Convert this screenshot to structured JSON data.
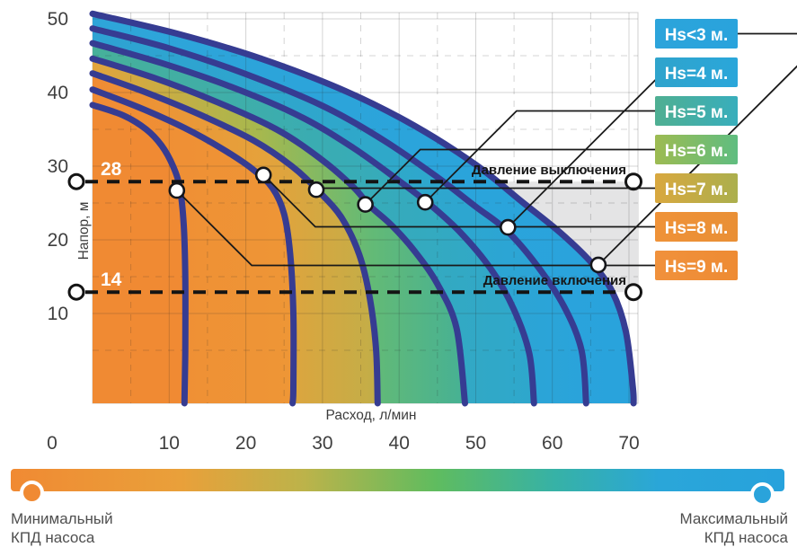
{
  "chart_data": {
    "type": "area",
    "title": "",
    "xlabel": "Расход, л/мин",
    "ylabel": "Напор, м",
    "x_ticks": [
      0,
      10,
      20,
      30,
      40,
      50,
      60,
      70
    ],
    "y_ticks": [
      10,
      20,
      30,
      40,
      50
    ],
    "xlim": [
      0,
      71
    ],
    "ylim": [
      0,
      51
    ],
    "grid": {
      "major_step": 10,
      "minor_step": 5,
      "major_on": true,
      "minor_dashed": true
    },
    "legend_position": "right",
    "curve_line_color": "#363C92",
    "operating_band_color": "#E4E4E5",
    "curves": [
      {
        "label": "Hs=9 м.",
        "chip": [
          "#F0913C",
          "#EE8B33"
        ],
        "band": [
          [
            0,
            "#F08A33"
          ],
          [
            1,
            "#F08A33"
          ]
        ],
        "points": [
          [
            0,
            38.3
          ],
          [
            4,
            36.9
          ],
          [
            7,
            35.0
          ],
          [
            9,
            32.8
          ],
          [
            10.5,
            30.0
          ],
          [
            11.4,
            27.0
          ],
          [
            11.9,
            22.0
          ],
          [
            12.1,
            15.0
          ],
          [
            12.1,
            5.0
          ],
          [
            12.0,
            -2.2
          ]
        ],
        "marker": [
          11.0,
          26.7
        ]
      },
      {
        "label": "Hs=8 м.",
        "chip": [
          "#EF9238",
          "#E98F35"
        ],
        "band": [
          [
            0,
            "#F08B34"
          ],
          [
            1,
            "#EE9636"
          ]
        ],
        "points": [
          [
            0,
            40.4
          ],
          [
            6,
            38.0
          ],
          [
            12,
            35.2
          ],
          [
            17,
            32.3
          ],
          [
            21,
            29.5
          ],
          [
            23.5,
            27.0
          ],
          [
            25,
            23.5
          ],
          [
            25.8,
            18.0
          ],
          [
            26.2,
            10.0
          ],
          [
            26.2,
            0.0
          ],
          [
            26.1,
            -2.2
          ]
        ],
        "marker": [
          22.3,
          28.8
        ]
      },
      {
        "label": "Hs=7 м.",
        "chip": [
          "#D9A83F",
          "#ABAF4D"
        ],
        "band": [
          [
            0,
            "#F08B34"
          ],
          [
            0.6,
            "#E5A23B"
          ],
          [
            1,
            "#C2AE48"
          ]
        ],
        "points": [
          [
            0,
            42.6
          ],
          [
            7,
            40.0
          ],
          [
            14,
            37.0
          ],
          [
            21,
            33.5
          ],
          [
            26,
            30.0
          ],
          [
            29.5,
            26.6
          ],
          [
            32.5,
            23.0
          ],
          [
            34.8,
            18.0
          ],
          [
            36.2,
            12.0
          ],
          [
            37,
            5.0
          ],
          [
            37.2,
            -2.2
          ]
        ],
        "marker": [
          29.2,
          26.8
        ]
      },
      {
        "label": "Hs=6 м.",
        "chip": [
          "#9DBB52",
          "#5FBD80"
        ],
        "band": [
          [
            0,
            "#E3A43C"
          ],
          [
            0.45,
            "#A6B84E"
          ],
          [
            0.75,
            "#63BA76"
          ],
          [
            1,
            "#46B194"
          ]
        ],
        "points": [
          [
            0,
            44.6
          ],
          [
            8,
            42.0
          ],
          [
            16,
            38.8
          ],
          [
            24,
            35.0
          ],
          [
            30,
            30.8
          ],
          [
            34,
            27.2
          ],
          [
            36.2,
            24.6
          ],
          [
            39,
            22.0
          ],
          [
            42,
            18.5
          ],
          [
            45,
            14.0
          ],
          [
            47.5,
            8.0
          ],
          [
            48.6,
            -2.2
          ]
        ],
        "marker": [
          35.6,
          24.8
        ]
      },
      {
        "label": "Hs=5 м.",
        "chip": [
          "#4FAF92",
          "#38AEBC"
        ],
        "band": [
          [
            0,
            "#47B09A"
          ],
          [
            0.55,
            "#39ACB4"
          ],
          [
            1,
            "#2EA7CD"
          ]
        ],
        "points": [
          [
            0,
            46.7
          ],
          [
            9,
            44.0
          ],
          [
            18,
            40.8
          ],
          [
            27,
            36.8
          ],
          [
            34,
            32.5
          ],
          [
            40,
            28.0
          ],
          [
            44,
            24.8
          ],
          [
            48,
            21.0
          ],
          [
            52,
            16.0
          ],
          [
            55,
            10.5
          ],
          [
            57,
            4.5
          ],
          [
            57.6,
            -2.2
          ]
        ],
        "marker": [
          43.4,
          25.1
        ]
      },
      {
        "label": "Hs=4 м.",
        "chip": [
          "#2FA4CC",
          "#2AA6DA"
        ],
        "band": [
          [
            0,
            "#2EA2D3"
          ],
          [
            0.6,
            "#2FA8C9"
          ],
          [
            1,
            "#2AA3DB"
          ]
        ],
        "points": [
          [
            0,
            48.7
          ],
          [
            10,
            46.0
          ],
          [
            20,
            42.5
          ],
          [
            30,
            38.2
          ],
          [
            38,
            33.5
          ],
          [
            45,
            28.5
          ],
          [
            50,
            24.5
          ],
          [
            54,
            21.3
          ],
          [
            58,
            16.5
          ],
          [
            61.5,
            11.0
          ],
          [
            63.8,
            5.0
          ],
          [
            64.4,
            -2.2
          ]
        ],
        "marker": [
          54.2,
          21.7
        ]
      },
      {
        "label": "Hs<3 м.",
        "chip": [
          "#2CA4DB",
          "#29A3DC"
        ],
        "band": [
          [
            0,
            "#2EA5D9"
          ],
          [
            1,
            "#29A3DC"
          ]
        ],
        "points": [
          [
            0,
            50.7
          ],
          [
            11,
            48.0
          ],
          [
            22,
            44.6
          ],
          [
            33,
            40.2
          ],
          [
            42,
            35.5
          ],
          [
            50,
            30.2
          ],
          [
            56,
            25.2
          ],
          [
            61,
            21.0
          ],
          [
            65,
            17.0
          ],
          [
            67.8,
            13.0
          ],
          [
            69.6,
            7.5
          ],
          [
            70.5,
            0.0
          ],
          [
            70.6,
            -2.2
          ]
        ],
        "marker": [
          66.0,
          16.6
        ]
      }
    ],
    "threshold_lines": [
      {
        "value": 28,
        "label": "28",
        "caption": "Давление выключения",
        "head_position": 27.9
      },
      {
        "value": 14,
        "label": "14",
        "caption": "Давление включения",
        "head_position": 12.9
      }
    ],
    "efficiency_bar": {
      "min_lines": [
        "Минимальный",
        "КПД насоса"
      ],
      "max_lines": [
        "Максимальный",
        "КПД насоса"
      ],
      "min_marker_color": "#F08A33",
      "max_marker_color": "#2AA3DB",
      "stops": [
        {
          "off": "0%",
          "color": "#F08A33"
        },
        {
          "off": "22%",
          "color": "#E9A03A"
        },
        {
          "off": "38%",
          "color": "#BCB34A"
        },
        {
          "off": "55%",
          "color": "#5FBC5F"
        },
        {
          "off": "70%",
          "color": "#37B2A5"
        },
        {
          "off": "84%",
          "color": "#2AA6D9"
        },
        {
          "off": "100%",
          "color": "#27A2DC"
        }
      ]
    }
  }
}
